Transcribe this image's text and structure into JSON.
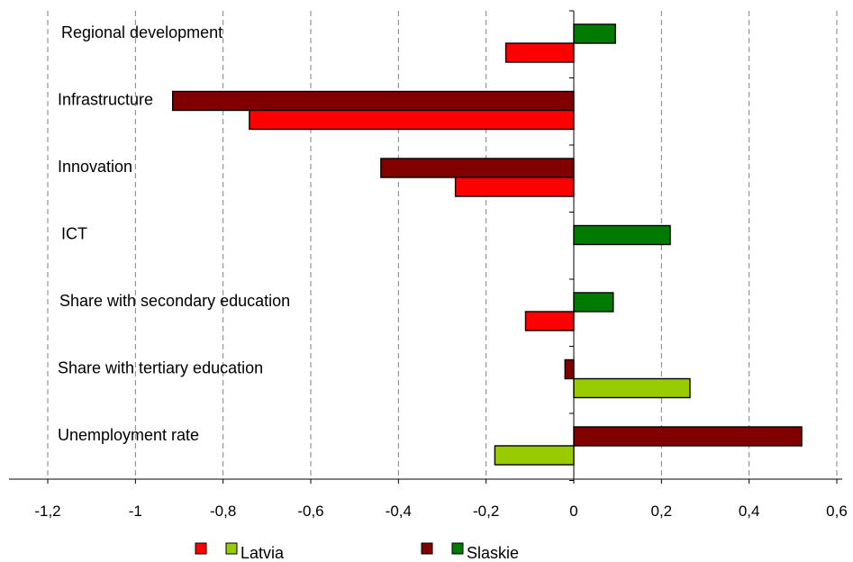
{
  "chart_data": {
    "type": "bar",
    "orientation": "horizontal",
    "categories": [
      "Regional development",
      "Infrastructure",
      "Innovation",
      "ICT",
      "Share with secondary education",
      "Share with tertiary education",
      "Unemployment rate"
    ],
    "series": [
      {
        "name": "Slaskie",
        "values": [
          0.095,
          -0.915,
          -0.44,
          0.22,
          0.09,
          -0.02,
          0.52
        ],
        "colors": [
          "#007a00",
          "#800000",
          "#800000",
          "#007a00",
          "#007a00",
          "#800000",
          "#800000"
        ]
      },
      {
        "name": "Latvia",
        "values": [
          -0.155,
          -0.74,
          -0.27,
          null,
          -0.11,
          0.265,
          -0.18
        ],
        "colors": [
          "#ff0000",
          "#ff0000",
          "#ff0000",
          null,
          "#ff0000",
          "#99cc00",
          "#99cc00"
        ]
      }
    ],
    "xlim": [
      -1.2,
      0.6
    ],
    "xticks": [
      "-1,2",
      "-1",
      "-0,8",
      "-0,6",
      "-0,4",
      "-0,2",
      "0",
      "0,2",
      "0,4",
      "0,6"
    ],
    "xtick_values": [
      -1.2,
      -1.0,
      -0.8,
      -0.6,
      -0.4,
      -0.2,
      0,
      0.2,
      0.4,
      0.6
    ],
    "grid": "vertical dashed",
    "legend_position": "bottom",
    "legend": [
      {
        "label": "Latvia",
        "swatches": [
          "#ff0000",
          "#99cc00"
        ]
      },
      {
        "label": "Slaskie",
        "swatches": [
          "#800000",
          "#007a00"
        ]
      }
    ]
  }
}
